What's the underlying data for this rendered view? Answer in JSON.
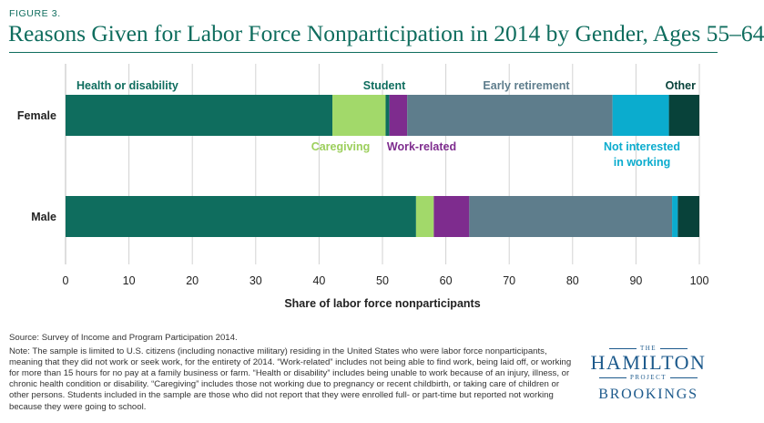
{
  "header": {
    "figure_label": "FIGURE 3.",
    "title": "Reasons Given for Labor Force Nonparticipation in 2014 by Gender, Ages 55–64"
  },
  "chart_data": {
    "type": "bar",
    "orientation": "horizontal",
    "stacked": true,
    "categories": [
      "Female",
      "Male"
    ],
    "series": [
      {
        "name": "Health or disability",
        "values": [
          42.1,
          55.3
        ],
        "color": "#0f6d5e"
      },
      {
        "name": "Caregiving",
        "values": [
          8.4,
          2.8
        ],
        "color": "#a2d96a"
      },
      {
        "name": "Student",
        "values": [
          0.6,
          0.0
        ],
        "color": "#0f6d5e"
      },
      {
        "name": "Work-related",
        "values": [
          2.8,
          5.6
        ],
        "color": "#7e2c8e"
      },
      {
        "name": "Early retirement",
        "values": [
          32.4,
          32.0
        ],
        "color": "#5e7d8c"
      },
      {
        "name": "Not interested in working",
        "values": [
          8.9,
          0.9
        ],
        "color": "#0bacce"
      },
      {
        "name": "Other",
        "values": [
          4.8,
          3.4
        ],
        "color": "#08423a"
      }
    ],
    "labels": [
      {
        "text": "Health or disability",
        "color": "#0f6d5e"
      },
      {
        "text": "Student",
        "color": "#0f6d5e"
      },
      {
        "text": "Early retirement",
        "color": "#5e7d8c"
      },
      {
        "text": "Other",
        "color": "#08423a"
      },
      {
        "text": "Caregiving",
        "color": "#9ccf5c"
      },
      {
        "text": "Work-related",
        "color": "#7e2c8e"
      },
      {
        "text": "Not interested",
        "color": "#0bacce"
      },
      {
        "text": "in working",
        "color": "#0bacce"
      }
    ],
    "x_ticks": [
      0,
      10,
      20,
      30,
      40,
      50,
      60,
      70,
      80,
      90,
      100
    ],
    "xlim": [
      0,
      100
    ],
    "xlabel": "Share of labor force nonparticipants",
    "ylabel": "",
    "grid": true
  },
  "footer": {
    "source": "Source: Survey of Income and Program Participation 2014.",
    "note": "Note: The sample is limited to U.S. citizens (including nonactive military) residing in the United States who were labor force nonparticipants, meaning that they did not work or seek work, for the entirety of 2014. “Work-related” includes not being able to find work, being laid off, or working for more than 15 hours for no pay at a family business or farm. “Health or disability” includes being unable to work because of an injury, illness, or chronic health condition or disability. “Caregiving” includes those not working due to pregnancy or recent childbirth, or taking care of children or other persons. Students included in the sample are those who did not report that they were enrolled full- or part-time but reported not working because they were going to school."
  },
  "logo": {
    "the": "THE",
    "hamilton": "HAMILTON",
    "project": "PROJECT",
    "brookings": "BROOKINGS"
  }
}
